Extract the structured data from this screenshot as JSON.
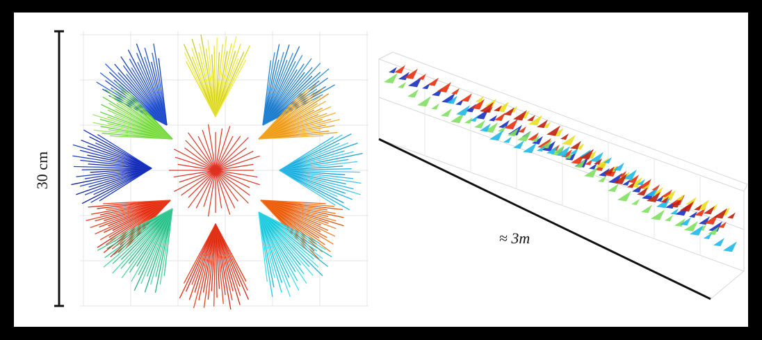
{
  "figure": {
    "left_scale_label": "30 cm",
    "right_scale_label": "≈ 3m"
  }
}
